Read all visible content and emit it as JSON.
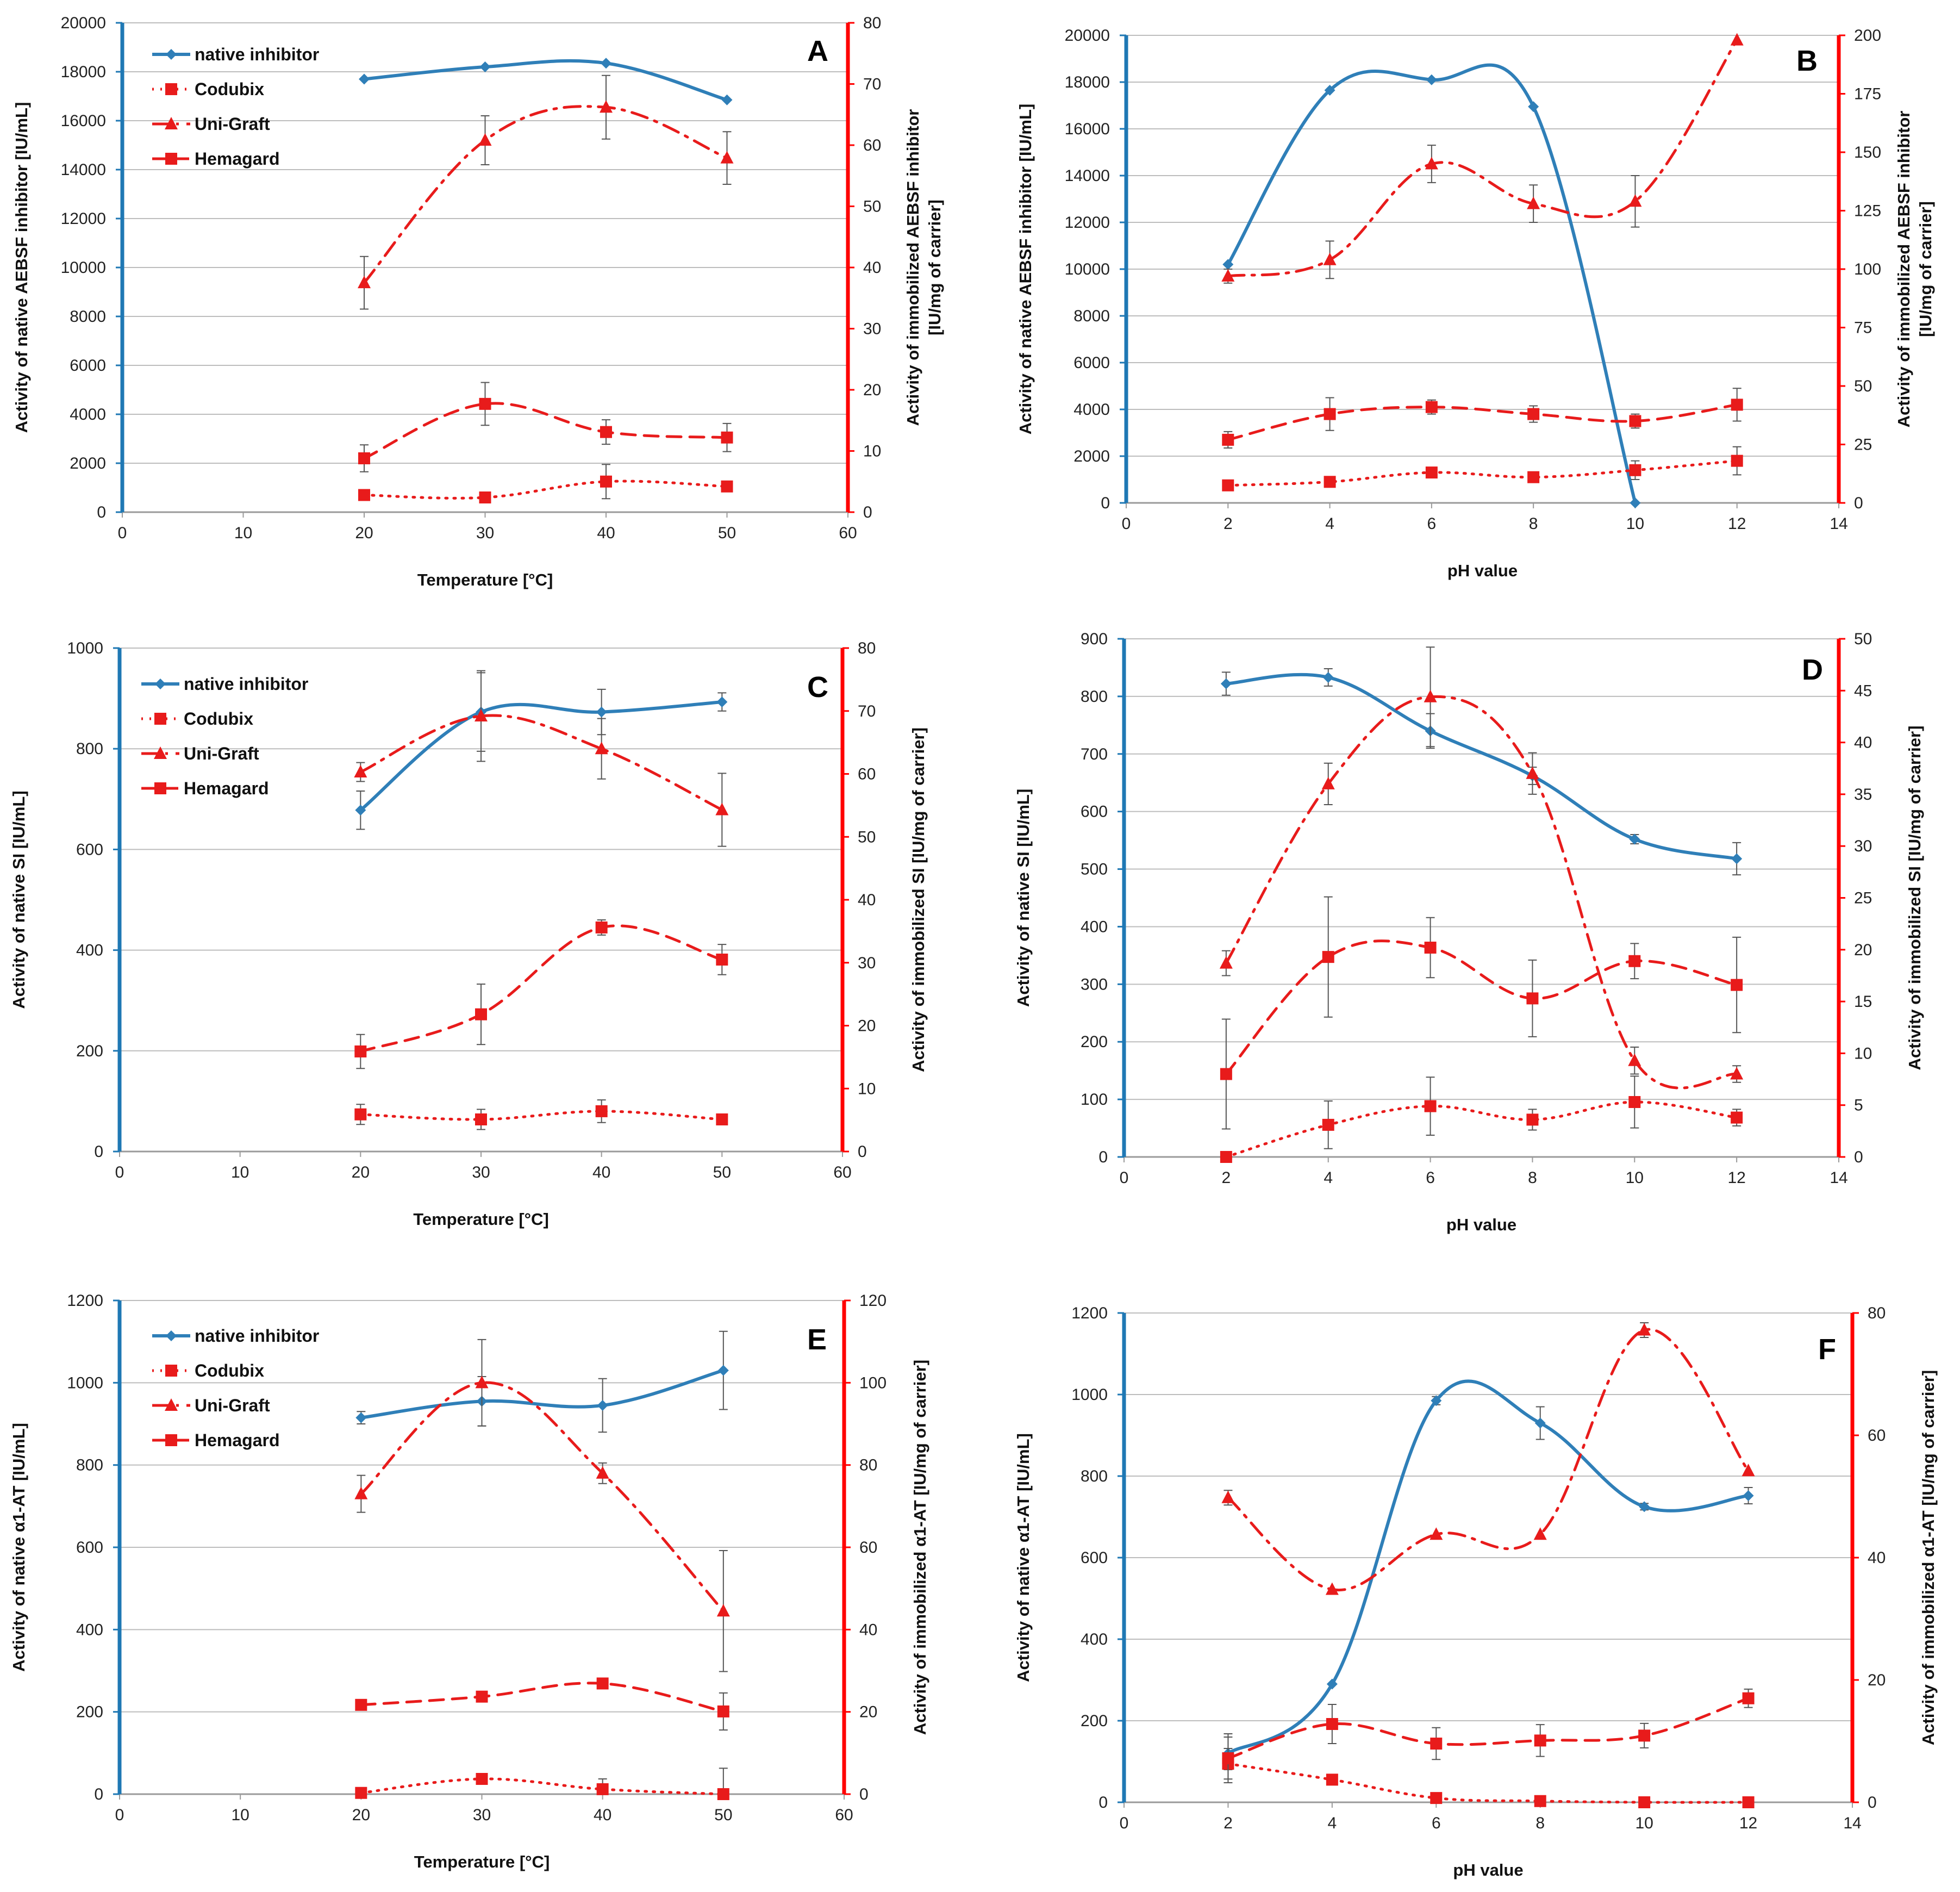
{
  "colors": {
    "native": "#2f7fb8",
    "immobilized": "#e81b1b",
    "left_axis": "#1f78b4",
    "right_axis": "#ff0000",
    "grid": "#bdbdbd",
    "error_bar": "#555555"
  },
  "legend_labels": [
    "native inhibitor",
    "Codubix",
    "Uni-Graft",
    "Hemagard"
  ],
  "chart_data": [
    {
      "panel": "A",
      "type": "line",
      "xlabel": "Temperature [°C]",
      "ylabel": "Activity of native AEBSF inhibitor  [IU/mL]",
      "y2label_lines": [
        "Activity of immobilized  AEBSF inhibitor",
        "[IU/mg of carrier]"
      ],
      "xlim": [
        0,
        60
      ],
      "xticks": [
        0,
        10,
        20,
        30,
        40,
        50,
        60
      ],
      "ylim": [
        0,
        20000
      ],
      "yticks": [
        0,
        2000,
        4000,
        6000,
        8000,
        10000,
        12000,
        14000,
        16000,
        18000,
        20000
      ],
      "y2lim": [
        0,
        80
      ],
      "y2ticks": [
        0,
        10,
        20,
        30,
        40,
        50,
        60,
        70,
        80
      ],
      "legend": true,
      "series": [
        {
          "name": "native inhibitor",
          "axis": "left",
          "x": [
            20,
            30,
            40,
            50
          ],
          "y": [
            17700,
            18200,
            18350,
            16850
          ],
          "err": [
            0,
            0,
            0,
            0
          ]
        },
        {
          "name": "Codubix",
          "axis": "right",
          "x": [
            20,
            30,
            40,
            50
          ],
          "y": [
            2.8,
            2.4,
            5.0,
            4.2
          ],
          "err": [
            0,
            0,
            2.8,
            0
          ]
        },
        {
          "name": "Uni-Graft",
          "axis": "right",
          "x": [
            20,
            30,
            40,
            50
          ],
          "y": [
            37.5,
            60.8,
            66.2,
            57.9
          ],
          "err": [
            4.3,
            4.0,
            5.2,
            4.3
          ]
        },
        {
          "name": "Hemagard",
          "axis": "right",
          "x": [
            20,
            30,
            40,
            50
          ],
          "y": [
            8.8,
            17.7,
            13.1,
            12.2
          ],
          "err": [
            2.2,
            3.5,
            2.0,
            2.3
          ]
        }
      ]
    },
    {
      "panel": "B",
      "type": "line",
      "xlabel": "pH value",
      "ylabel": "Activity of native AEBSF inhibitor  [IU/mL]",
      "y2label_lines": [
        "Activity of immobilized  AEBSF inhibitor",
        "[IU/mg of carrier]"
      ],
      "xlim": [
        0,
        14
      ],
      "xticks": [
        0,
        2,
        4,
        6,
        8,
        10,
        12,
        14
      ],
      "ylim": [
        0,
        20000
      ],
      "yticks": [
        0,
        2000,
        4000,
        6000,
        8000,
        10000,
        12000,
        14000,
        16000,
        18000,
        20000
      ],
      "y2lim": [
        0,
        200
      ],
      "y2ticks": [
        0,
        25,
        50,
        75,
        100,
        125,
        150,
        175,
        200
      ],
      "legend": false,
      "series": [
        {
          "name": "native inhibitor",
          "axis": "left",
          "x": [
            2,
            4,
            6,
            8,
            10
          ],
          "y": [
            10200,
            17650,
            18100,
            16950,
            0
          ],
          "err": [
            0,
            0,
            0,
            0,
            0
          ]
        },
        {
          "name": "Codubix",
          "axis": "right",
          "x": [
            2,
            4,
            6,
            8,
            10,
            12
          ],
          "y": [
            7.5,
            9,
            13,
            11,
            14,
            18
          ],
          "err": [
            0,
            0,
            1.5,
            0,
            4,
            6
          ]
        },
        {
          "name": "Uni-Graft",
          "axis": "right",
          "x": [
            2,
            4,
            6,
            8,
            10,
            12
          ],
          "y": [
            97,
            104,
            145,
            128,
            129,
            198
          ],
          "err": [
            3,
            8,
            8,
            8,
            11,
            0
          ]
        },
        {
          "name": "Hemagard",
          "axis": "right",
          "x": [
            2,
            4,
            6,
            8,
            10,
            12
          ],
          "y": [
            27,
            38,
            41,
            38,
            35,
            42
          ],
          "err": [
            3.5,
            7,
            3,
            3.5,
            3,
            7
          ]
        }
      ]
    },
    {
      "panel": "C",
      "type": "line",
      "xlabel": "Temperature [°C]",
      "ylabel": "Activity of native SI [IU/mL]",
      "y2label_lines": [
        "Activity of immobilized SI [IU/mg of carrier]"
      ],
      "xlim": [
        0,
        60
      ],
      "xticks": [
        0,
        10,
        20,
        30,
        40,
        50,
        60
      ],
      "ylim": [
        0,
        1000
      ],
      "yticks": [
        0,
        200,
        400,
        600,
        800,
        1000
      ],
      "y2lim": [
        0,
        80
      ],
      "y2ticks": [
        0,
        10,
        20,
        30,
        40,
        50,
        60,
        70,
        80
      ],
      "legend": true,
      "series": [
        {
          "name": "native inhibitor",
          "axis": "left",
          "x": [
            20,
            30,
            40,
            50
          ],
          "y": [
            678,
            873,
            873,
            893
          ],
          "err": [
            38,
            78,
            45,
            18
          ]
        },
        {
          "name": "Codubix",
          "axis": "right",
          "x": [
            20,
            30,
            40,
            50
          ],
          "y": [
            5.9,
            5.1,
            6.4,
            5.1
          ],
          "err": [
            1.6,
            1.6,
            1.8,
            0
          ]
        },
        {
          "name": "Uni-Graft",
          "axis": "right",
          "x": [
            20,
            30,
            40,
            50
          ],
          "y": [
            60.3,
            69.2,
            64.0,
            54.3
          ],
          "err": [
            1.5,
            7.2,
            4.8,
            5.8
          ]
        },
        {
          "name": "Hemagard",
          "axis": "right",
          "x": [
            20,
            30,
            40,
            50
          ],
          "y": [
            15.9,
            21.8,
            35.6,
            30.5
          ],
          "err": [
            2.7,
            4.8,
            1.2,
            2.4
          ]
        }
      ]
    },
    {
      "panel": "D",
      "type": "line",
      "xlabel": "pH value",
      "ylabel": "Activity of native SI [IU/mL]",
      "y2label_lines": [
        "Activity of immobilized SI [IU/mg of carrier]"
      ],
      "xlim": [
        0,
        14
      ],
      "xticks": [
        0,
        2,
        4,
        6,
        8,
        10,
        12,
        14
      ],
      "ylim": [
        0,
        900
      ],
      "yticks": [
        0,
        100,
        200,
        300,
        400,
        500,
        600,
        700,
        800,
        900
      ],
      "y2lim": [
        0,
        50
      ],
      "y2ticks": [
        0,
        5,
        10,
        15,
        20,
        25,
        30,
        35,
        40,
        45,
        50
      ],
      "legend": false,
      "series": [
        {
          "name": "native inhibitor",
          "axis": "left",
          "x": [
            2,
            4,
            6,
            8,
            10,
            12
          ],
          "y": [
            822,
            833,
            740,
            662,
            552,
            518
          ],
          "err": [
            20,
            15,
            30,
            15,
            8,
            28
          ]
        },
        {
          "name": "Codubix",
          "axis": "right",
          "x": [
            2,
            4,
            6,
            8,
            10,
            12
          ],
          "y": [
            0,
            3.1,
            4.9,
            3.6,
            5.3,
            3.8
          ],
          "err": [
            0,
            2.3,
            2.8,
            1.0,
            2.5,
            0.8
          ]
        },
        {
          "name": "Uni-Graft",
          "axis": "right",
          "x": [
            2,
            4,
            6,
            8,
            10,
            12
          ],
          "y": [
            18.7,
            36.0,
            44.4,
            37.0,
            9.3,
            8.0
          ],
          "err": [
            1.2,
            2.0,
            4.8,
            2.0,
            1.3,
            0.8
          ]
        },
        {
          "name": "Hemagard",
          "axis": "right",
          "x": [
            2,
            4,
            6,
            8,
            10,
            12
          ],
          "y": [
            8.0,
            19.3,
            20.2,
            15.3,
            18.9,
            16.6
          ],
          "err": [
            5.3,
            5.8,
            2.9,
            3.7,
            1.7,
            4.6
          ]
        }
      ]
    },
    {
      "panel": "E",
      "type": "line",
      "xlabel": "Temperature [°C]",
      "ylabel": "Activity of native α1-AT [IU/mL]",
      "y2label_lines": [
        "Activity of immobilized α1-AT  [IU/mg of carrier]"
      ],
      "xlim": [
        0,
        60
      ],
      "xticks": [
        0,
        10,
        20,
        30,
        40,
        50,
        60
      ],
      "ylim": [
        0,
        1200
      ],
      "yticks": [
        0,
        200,
        400,
        600,
        800,
        1000,
        1200
      ],
      "y2lim": [
        0,
        120
      ],
      "y2ticks": [
        0,
        20,
        40,
        60,
        80,
        100,
        120
      ],
      "legend": true,
      "series": [
        {
          "name": "native inhibitor",
          "axis": "left",
          "x": [
            20,
            30,
            40,
            50
          ],
          "y": [
            915,
            955,
            945,
            1030
          ],
          "err": [
            15,
            60,
            65,
            95
          ]
        },
        {
          "name": "Codubix",
          "axis": "right",
          "x": [
            20,
            30,
            40,
            50
          ],
          "y": [
            0.3,
            3.7,
            1.2,
            0
          ],
          "err": [
            0,
            0,
            2.5,
            6.3
          ]
        },
        {
          "name": "Uni-Graft",
          "axis": "right",
          "x": [
            20,
            30,
            40,
            50
          ],
          "y": [
            73,
            100,
            78,
            44.5
          ],
          "err": [
            4.5,
            10.5,
            2.5,
            14.7
          ]
        },
        {
          "name": "Hemagard",
          "axis": "right",
          "x": [
            20,
            30,
            40,
            50
          ],
          "y": [
            21.7,
            23.7,
            26.9,
            20.1
          ],
          "err": [
            0,
            0,
            0,
            4.5
          ]
        }
      ]
    },
    {
      "panel": "F",
      "type": "line",
      "xlabel": "pH value",
      "ylabel": "Activity of native α1-AT [IU/mL]",
      "y2label_lines": [
        "Activity of immobilized α1-AT [IU/mg of carrier]"
      ],
      "xlim": [
        0,
        14
      ],
      "xticks": [
        0,
        2,
        4,
        6,
        8,
        10,
        12,
        14
      ],
      "ylim": [
        0,
        1200
      ],
      "yticks": [
        0,
        200,
        400,
        600,
        800,
        1000,
        1200
      ],
      "y2lim": [
        0,
        80
      ],
      "y2ticks": [
        0,
        20,
        40,
        60,
        80
      ],
      "legend": false,
      "series": [
        {
          "name": "native inhibitor",
          "axis": "left",
          "x": [
            2,
            4,
            6,
            8,
            10,
            12
          ],
          "y": [
            120,
            290,
            985,
            930,
            725,
            752
          ],
          "err": [
            40,
            0,
            10,
            40,
            8,
            20
          ]
        },
        {
          "name": "Codubix",
          "axis": "right",
          "x": [
            2,
            4,
            6,
            8,
            10,
            12
          ],
          "y": [
            6.3,
            3.7,
            0.7,
            0.2,
            0,
            0
          ],
          "err": [
            2.5,
            0,
            0,
            0,
            0,
            0
          ]
        },
        {
          "name": "Uni-Graft",
          "axis": "right",
          "x": [
            2,
            4,
            6,
            8,
            10,
            12
          ],
          "y": [
            49.8,
            34.8,
            43.8,
            43.8,
            77.2,
            54.2
          ],
          "err": [
            1.2,
            0,
            0,
            0,
            1.2,
            0
          ]
        },
        {
          "name": "Hemagard",
          "axis": "right",
          "x": [
            2,
            4,
            6,
            8,
            10,
            12
          ],
          "y": [
            7.2,
            12.8,
            9.6,
            10.1,
            10.9,
            17.0
          ],
          "err": [
            4.0,
            3.2,
            2.6,
            2.6,
            2.0,
            1.5
          ]
        }
      ]
    }
  ]
}
